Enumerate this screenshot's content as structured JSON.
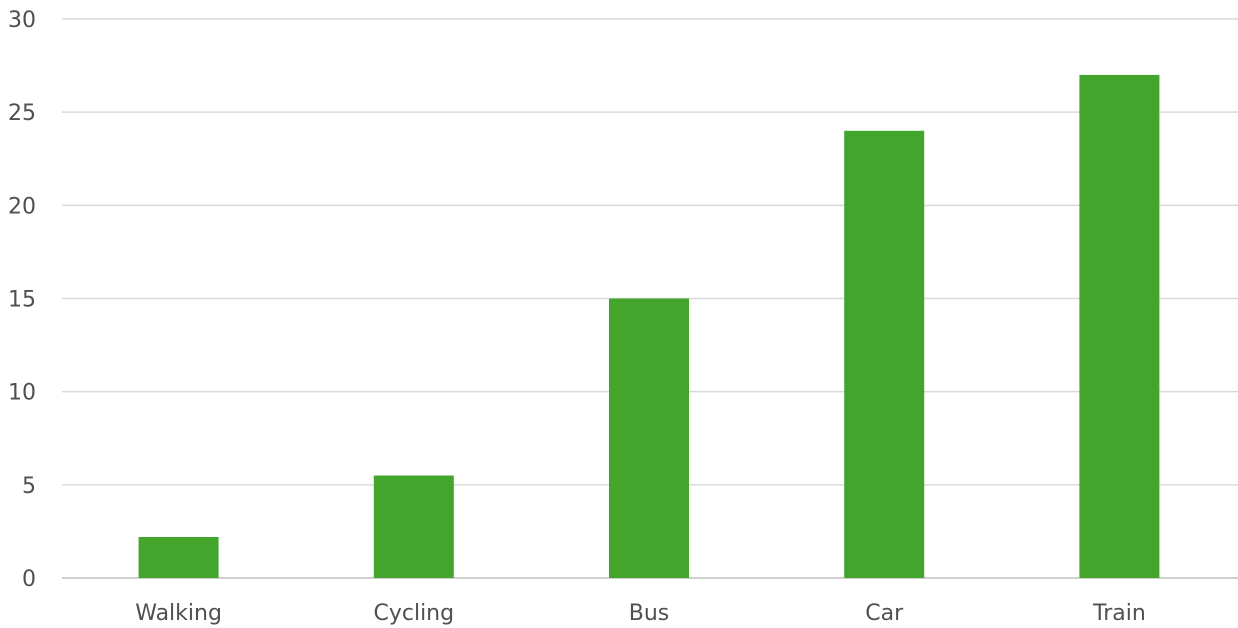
{
  "chart_data": {
    "type": "bar",
    "categories": [
      "Walking",
      "Cycling",
      "Bus",
      "Car",
      "Train"
    ],
    "values": [
      2.2,
      5.5,
      15,
      24,
      27
    ],
    "ylim": [
      0,
      30
    ],
    "yticks": [
      0,
      5,
      10,
      15,
      20,
      25,
      30
    ],
    "grid": true,
    "legend": "none",
    "bar_color": "#43a52b",
    "grid_color": "#d9d9d9",
    "label_color": "#505050"
  }
}
